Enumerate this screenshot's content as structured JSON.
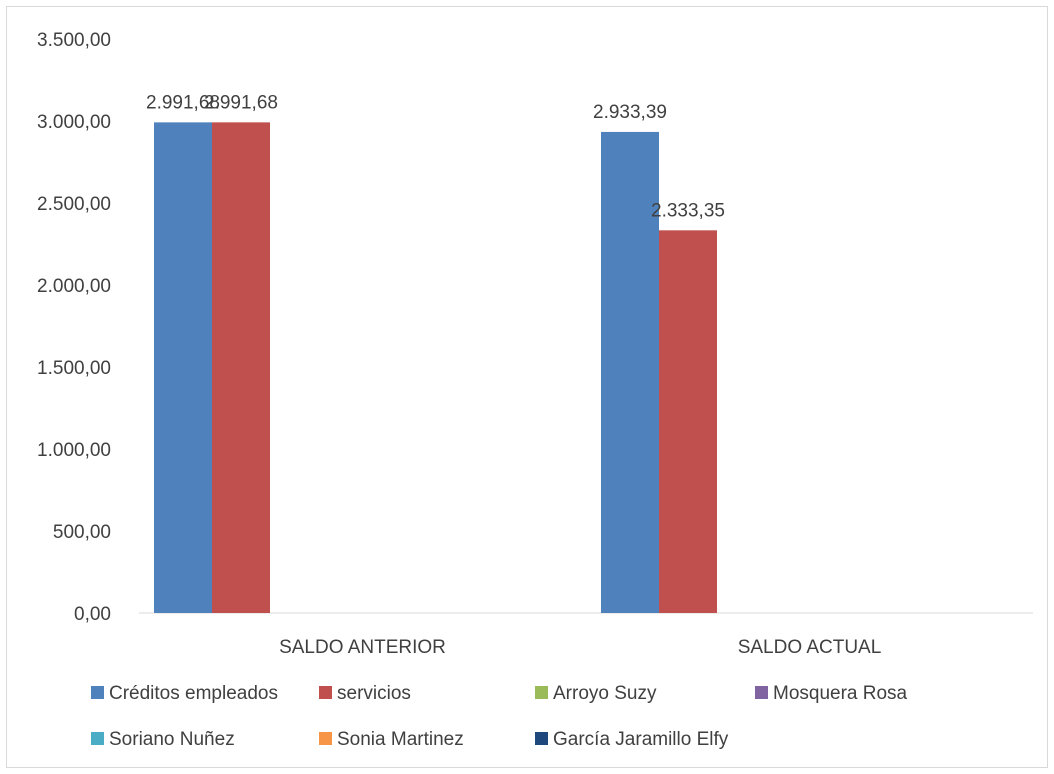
{
  "chart_data": {
    "type": "bar",
    "title": "",
    "categories": [
      "SALDO ANTERIOR",
      "SALDO ACTUAL"
    ],
    "ylim": [
      0,
      3500
    ],
    "yticks": [
      0,
      500,
      1000,
      1500,
      2000,
      2500,
      3000,
      3500
    ],
    "ytick_labels": [
      "0,00",
      "500,00",
      "1.000,00",
      "1.500,00",
      "2.000,00",
      "2.500,00",
      "3.000,00",
      "3.500,00"
    ],
    "grid": false,
    "legend_position": "bottom",
    "series": [
      {
        "name": "Créditos empleados",
        "color": "#4f81bd",
        "values": [
          2991.68,
          2933.39
        ],
        "labels": [
          "2.991,68",
          "2.933,39"
        ]
      },
      {
        "name": "servicios",
        "color": "#c0504d",
        "values": [
          2991.68,
          2333.35
        ],
        "labels": [
          "2.991,68",
          "2.333,35"
        ]
      },
      {
        "name": "Arroyo Suzy",
        "color": "#9bbb59",
        "values": [
          null,
          null
        ],
        "labels": [
          "",
          ""
        ]
      },
      {
        "name": "Mosquera Rosa",
        "color": "#8064a2",
        "values": [
          null,
          null
        ],
        "labels": [
          "",
          ""
        ]
      },
      {
        "name": "Soriano Nuñez",
        "color": "#4bacc6",
        "values": [
          null,
          null
        ],
        "labels": [
          "",
          ""
        ]
      },
      {
        "name": "Sonia Martinez",
        "color": "#f79646",
        "values": [
          null,
          null
        ],
        "labels": [
          "",
          ""
        ]
      },
      {
        "name": "García Jaramillo Elfy",
        "color": "#1f497d",
        "values": [
          null,
          null
        ],
        "labels": [
          "",
          ""
        ]
      }
    ]
  }
}
